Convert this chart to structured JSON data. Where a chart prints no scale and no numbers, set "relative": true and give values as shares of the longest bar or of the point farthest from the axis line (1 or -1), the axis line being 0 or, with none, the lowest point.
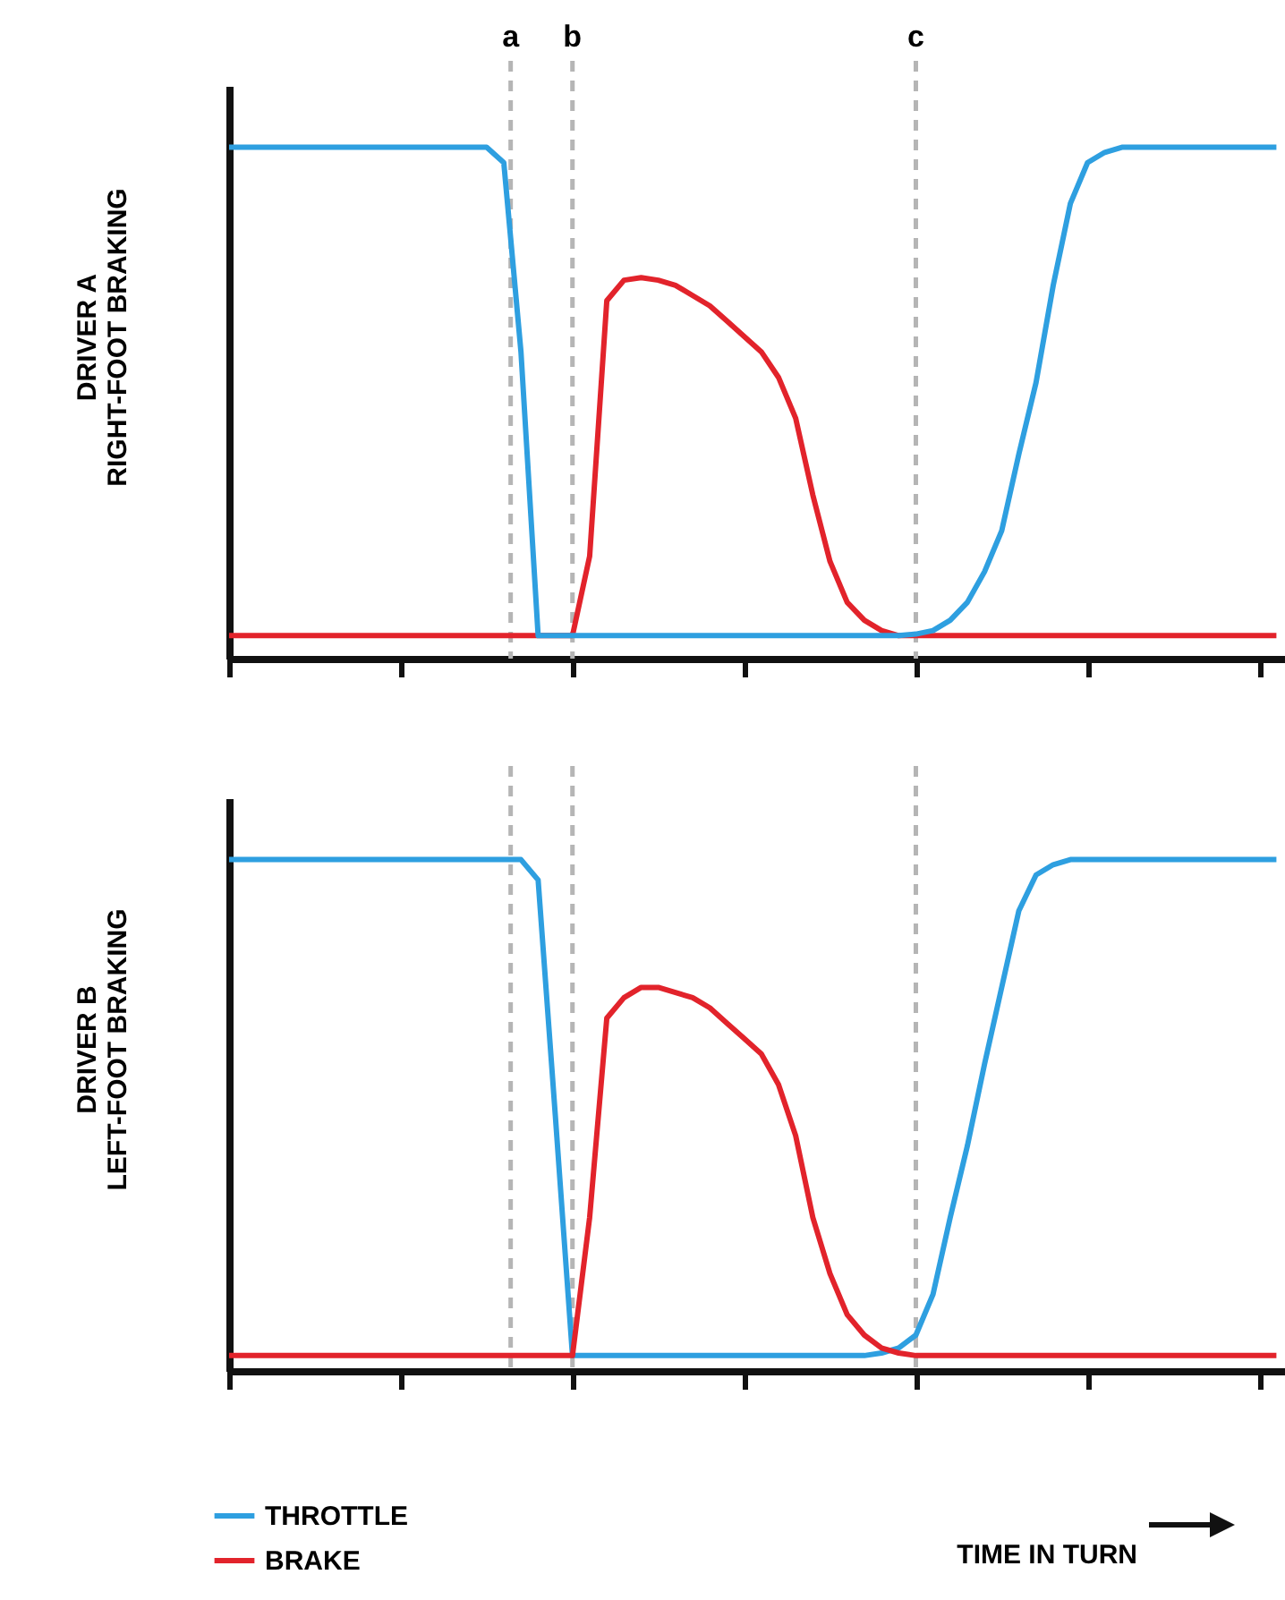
{
  "chart_data": [
    {
      "type": "line",
      "relative": true,
      "ylabel": "DRIVER A\nRIGHT-FOOT BRAKING",
      "categories": [
        null,
        null,
        null,
        null,
        null,
        null,
        null,
        null,
        null,
        null,
        null,
        null,
        null,
        null,
        null,
        null,
        null,
        null,
        null,
        null,
        null,
        null,
        null,
        null,
        null,
        null,
        null,
        null,
        null,
        null,
        null,
        null,
        null,
        null,
        null,
        null,
        null,
        null,
        null,
        null,
        null,
        null,
        null,
        null,
        null,
        null,
        null,
        null,
        null,
        null,
        null,
        null,
        null,
        null,
        null,
        null,
        null,
        null,
        null,
        null,
        null,
        null
      ],
      "legend": false,
      "annotations": [
        "a",
        "b",
        "c"
      ],
      "series": [
        {
          "color": "#e2232b",
          "values": [
            0.045,
            0.045,
            0.045,
            0.045,
            0.045,
            0.045,
            0.045,
            0.045,
            0.045,
            0.045,
            0.045,
            0.045,
            0.045,
            0.045,
            0.045,
            0.045,
            0.045,
            0.045,
            0.045,
            0.045,
            0.045,
            0.2,
            0.7,
            0.74,
            0.745,
            0.74,
            0.73,
            0.71,
            0.69,
            0.66,
            0.63,
            0.6,
            0.55,
            0.47,
            0.32,
            0.19,
            0.11,
            0.075,
            0.055,
            0.045,
            0.045,
            0.045,
            0.045,
            0.045,
            0.045,
            0.045,
            0.045,
            0.045,
            0.045,
            0.045,
            0.045,
            0.045,
            0.045,
            0.045,
            0.045,
            0.045,
            0.045,
            0.045,
            0.045,
            0.045,
            0.045,
            0.045
          ]
        },
        {
          "color": "#2e9fe0",
          "values": [
            1,
            1,
            1,
            1,
            1,
            1,
            1,
            1,
            1,
            1,
            1,
            1,
            1,
            1,
            1,
            1,
            0.97,
            0.6,
            0.045,
            0.045,
            0.045,
            0.045,
            0.045,
            0.045,
            0.045,
            0.045,
            0.045,
            0.045,
            0.045,
            0.045,
            0.045,
            0.045,
            0.045,
            0.045,
            0.045,
            0.045,
            0.045,
            0.045,
            0.045,
            0.045,
            0.048,
            0.055,
            0.075,
            0.11,
            0.17,
            0.25,
            0.4,
            0.54,
            0.73,
            0.89,
            0.97,
            0.99,
            1,
            1,
            1,
            1,
            1,
            1,
            1,
            1,
            1,
            1
          ]
        }
      ]
    },
    {
      "type": "line",
      "relative": true,
      "ylabel": "DRIVER B\nLEFT-FOOT BRAKING",
      "xlabel": "TIME IN TURN",
      "categories": [
        null,
        null,
        null,
        null,
        null,
        null,
        null,
        null,
        null,
        null,
        null,
        null,
        null,
        null,
        null,
        null,
        null,
        null,
        null,
        null,
        null,
        null,
        null,
        null,
        null,
        null,
        null,
        null,
        null,
        null,
        null,
        null,
        null,
        null,
        null,
        null,
        null,
        null,
        null,
        null,
        null,
        null,
        null,
        null,
        null,
        null,
        null,
        null,
        null,
        null,
        null,
        null,
        null,
        null,
        null,
        null,
        null,
        null,
        null,
        null,
        null,
        null
      ],
      "legend": "bottom left",
      "series": [
        {
          "name": "THROTTLE",
          "color": "#2e9fe0",
          "values": [
            1,
            1,
            1,
            1,
            1,
            1,
            1,
            1,
            1,
            1,
            1,
            1,
            1,
            1,
            1,
            1,
            1,
            1,
            0.96,
            0.5,
            0.03,
            0.03,
            0.03,
            0.03,
            0.03,
            0.03,
            0.03,
            0.03,
            0.03,
            0.03,
            0.03,
            0.03,
            0.03,
            0.03,
            0.03,
            0.03,
            0.03,
            0.03,
            0.035,
            0.045,
            0.07,
            0.15,
            0.3,
            0.44,
            0.6,
            0.75,
            0.9,
            0.97,
            0.99,
            1,
            1,
            1,
            1,
            1,
            1,
            1,
            1,
            1,
            1,
            1,
            1,
            1
          ]
        },
        {
          "name": "BRAKE",
          "color": "#e2232b",
          "values": [
            0.03,
            0.03,
            0.03,
            0.03,
            0.03,
            0.03,
            0.03,
            0.03,
            0.03,
            0.03,
            0.03,
            0.03,
            0.03,
            0.03,
            0.03,
            0.03,
            0.03,
            0.03,
            0.03,
            0.03,
            0.03,
            0.3,
            0.69,
            0.73,
            0.75,
            0.75,
            0.74,
            0.73,
            0.71,
            0.68,
            0.65,
            0.62,
            0.56,
            0.46,
            0.3,
            0.19,
            0.11,
            0.07,
            0.045,
            0.035,
            0.03,
            0.03,
            0.03,
            0.03,
            0.03,
            0.03,
            0.03,
            0.03,
            0.03,
            0.03,
            0.03,
            0.03,
            0.03,
            0.03,
            0.03,
            0.03,
            0.03,
            0.03,
            0.03,
            0.03,
            0.03,
            0.03
          ]
        }
      ]
    }
  ]
}
